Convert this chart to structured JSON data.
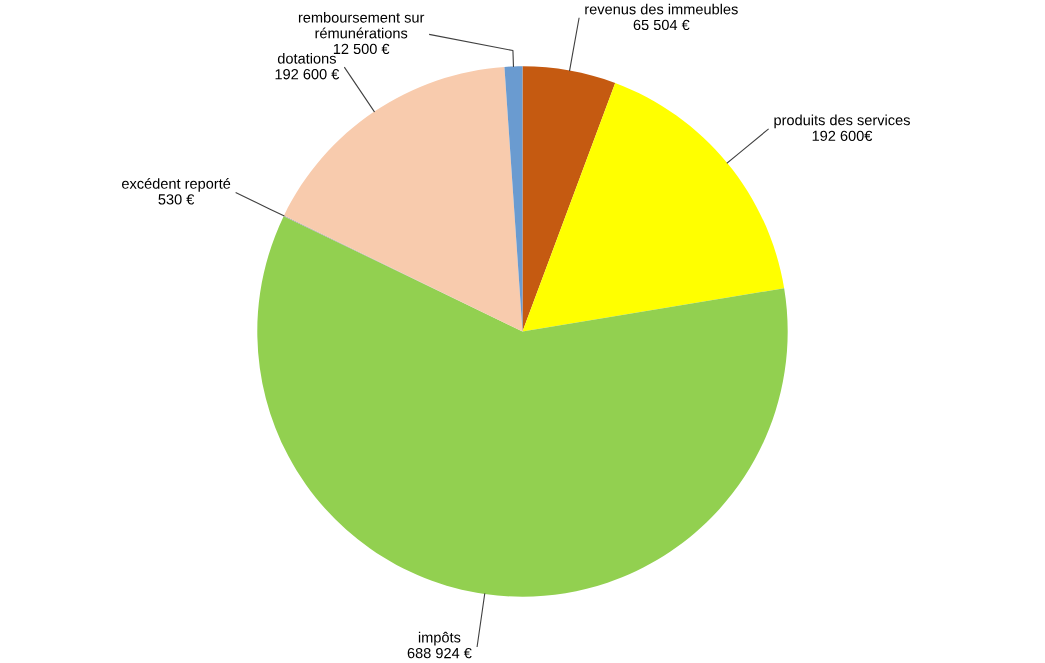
{
  "chart_data": {
    "type": "pie",
    "categories": [
      "revenus des immeubles",
      "produits des services",
      "impôts",
      "excédent reporté",
      "dotations",
      "remboursement sur\nrémunérations"
    ],
    "values": [
      65504,
      192600,
      688924,
      530,
      192600,
      12500
    ],
    "value_labels": [
      "65 504 €",
      "192 600€",
      "688 924 €",
      "530 €",
      "192 600 €",
      "12 500 €"
    ],
    "colors": [
      "#c55a11",
      "#ffff00",
      "#92d050",
      "#a5a5a5",
      "#f8cbad",
      "#6a9bd0"
    ],
    "legend": false
  }
}
